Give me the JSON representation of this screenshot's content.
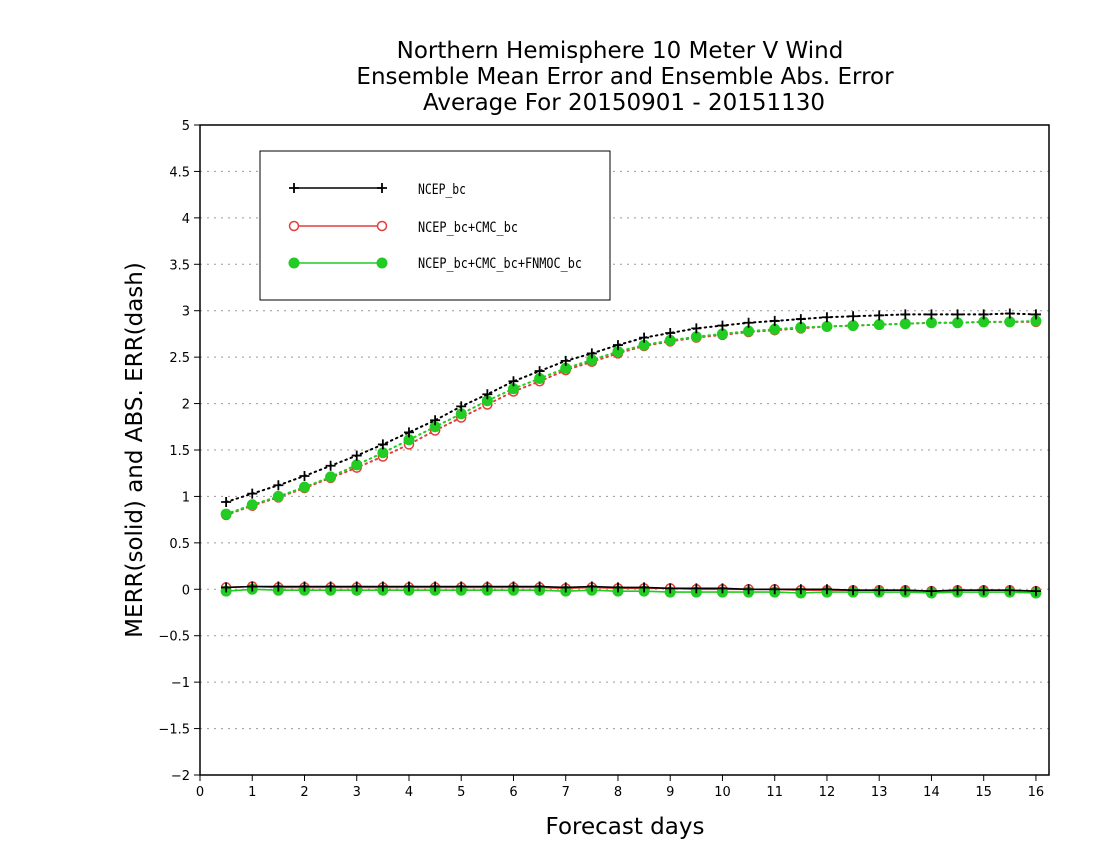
{
  "chart_data": {
    "type": "line",
    "title": [
      "Northern Hemisphere 10 Meter V Wind",
      "Ensemble Mean Error and Ensemble Abs. Error",
      "Average For 20150901 - 20151130"
    ],
    "xlabel": "Forecast days",
    "ylabel": "MERR(solid) and ABS. ERR(dash)",
    "xlim": [
      0,
      16.25
    ],
    "ylim": [
      -2,
      5
    ],
    "xticks": [
      0,
      1,
      2,
      3,
      4,
      5,
      6,
      7,
      8,
      9,
      10,
      11,
      12,
      13,
      14,
      15,
      16
    ],
    "xtick_labels": [
      "0",
      "1",
      "2",
      "3",
      "4",
      "5",
      "6",
      "7",
      "8",
      "9",
      "10",
      "11",
      "12",
      "13",
      "14",
      "15",
      "16"
    ],
    "yticks": [
      -2,
      -1.5,
      -1,
      -0.5,
      0,
      0.5,
      1,
      1.5,
      2,
      2.5,
      3,
      3.5,
      4,
      4.5,
      5
    ],
    "ytick_labels": [
      "−2",
      "−1.5",
      "−1",
      "−0.5",
      "0",
      "0.5",
      "1",
      "1.5",
      "2",
      "2.5",
      "3",
      "3.5",
      "4",
      "4.5",
      "5"
    ],
    "grid": "horizontal dotted",
    "legend_position": "top-left",
    "x": [
      0.5,
      1,
      1.5,
      2,
      2.5,
      3,
      3.5,
      4,
      4.5,
      5,
      5.5,
      6,
      6.5,
      7,
      7.5,
      8,
      8.5,
      9,
      9.5,
      10,
      10.5,
      11,
      11.5,
      12,
      12.5,
      13,
      13.5,
      14,
      14.5,
      15,
      15.5,
      16
    ],
    "series": [
      {
        "name": "NCEP_bc",
        "color": "#000000",
        "marker": "plus",
        "solid": [
          0.02,
          0.03,
          0.03,
          0.03,
          0.03,
          0.03,
          0.03,
          0.03,
          0.03,
          0.03,
          0.03,
          0.03,
          0.03,
          0.02,
          0.03,
          0.02,
          0.02,
          0.01,
          0.01,
          0.01,
          0.0,
          0.0,
          0.0,
          0.0,
          -0.01,
          -0.01,
          -0.01,
          -0.02,
          -0.01,
          -0.01,
          -0.01,
          -0.02
        ],
        "dash": [
          0.94,
          1.03,
          1.12,
          1.22,
          1.33,
          1.44,
          1.56,
          1.69,
          1.82,
          1.97,
          2.1,
          2.24,
          2.35,
          2.46,
          2.54,
          2.63,
          2.71,
          2.76,
          2.81,
          2.84,
          2.87,
          2.89,
          2.91,
          2.93,
          2.94,
          2.95,
          2.96,
          2.96,
          2.96,
          2.96,
          2.97,
          2.96
        ]
      },
      {
        "name": "NCEP_bc+CMC_bc",
        "color": "#e63c3c",
        "marker": "open-circle",
        "solid": [
          0.02,
          0.03,
          0.02,
          0.02,
          0.02,
          0.02,
          0.02,
          0.02,
          0.02,
          0.02,
          0.02,
          0.02,
          0.02,
          0.01,
          0.02,
          0.01,
          0.01,
          0.01,
          0.0,
          0.0,
          0.0,
          0.0,
          -0.01,
          -0.01,
          -0.01,
          -0.01,
          -0.01,
          -0.02,
          -0.01,
          -0.01,
          -0.01,
          -0.02
        ],
        "dash": [
          0.8,
          0.9,
          0.99,
          1.09,
          1.2,
          1.31,
          1.43,
          1.56,
          1.71,
          1.85,
          1.99,
          2.13,
          2.24,
          2.36,
          2.45,
          2.54,
          2.62,
          2.67,
          2.71,
          2.74,
          2.77,
          2.79,
          2.81,
          2.83,
          2.84,
          2.85,
          2.86,
          2.87,
          2.87,
          2.88,
          2.88,
          2.88
        ]
      },
      {
        "name": "NCEP_bc+CMC_bc+FNMOC_bc",
        "color": "#22cc22",
        "marker": "filled-circle",
        "solid": [
          -0.02,
          0.0,
          -0.01,
          -0.01,
          -0.01,
          -0.01,
          -0.01,
          -0.01,
          -0.01,
          -0.01,
          -0.01,
          -0.01,
          -0.01,
          -0.02,
          -0.01,
          -0.02,
          -0.02,
          -0.03,
          -0.03,
          -0.03,
          -0.03,
          -0.03,
          -0.04,
          -0.03,
          -0.03,
          -0.03,
          -0.03,
          -0.04,
          -0.03,
          -0.03,
          -0.03,
          -0.04
        ],
        "dash": [
          0.81,
          0.91,
          1.0,
          1.1,
          1.21,
          1.34,
          1.47,
          1.61,
          1.75,
          1.89,
          2.03,
          2.16,
          2.27,
          2.38,
          2.47,
          2.56,
          2.63,
          2.68,
          2.72,
          2.75,
          2.78,
          2.8,
          2.82,
          2.83,
          2.84,
          2.85,
          2.86,
          2.87,
          2.87,
          2.88,
          2.88,
          2.89
        ]
      }
    ]
  }
}
